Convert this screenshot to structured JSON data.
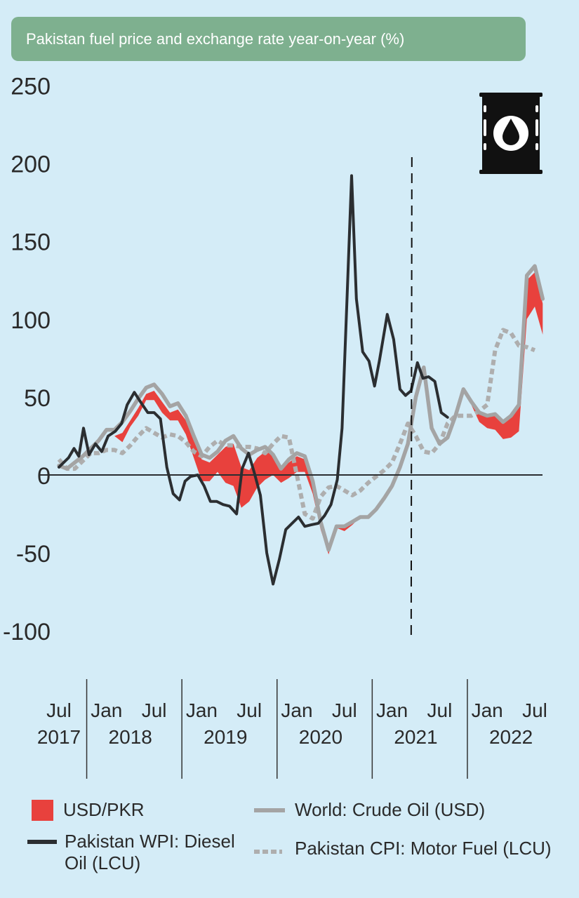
{
  "title": "Pakistan fuel price and exchange rate year-on-year (%)",
  "chart_data": {
    "type": "line",
    "title": "Pakistan fuel price and exchange rate year-on-year (%)",
    "xlabel": "",
    "ylabel": "",
    "ylim": [
      -100,
      250
    ],
    "yticks": [
      250,
      200,
      150,
      100,
      50,
      0,
      -50,
      -100
    ],
    "x_unit": "months since Jul 2017 (0 = Jul 2017, 60 = Jul 2022)",
    "x_groups": [
      {
        "labels": [
          {
            "text": "Jul",
            "x": 0
          }
        ],
        "year": "2017"
      },
      {
        "labels": [
          {
            "text": "Jan",
            "x": 6
          },
          {
            "text": "Jul",
            "x": 12
          }
        ],
        "year": "2018"
      },
      {
        "labels": [
          {
            "text": "Jan",
            "x": 18
          },
          {
            "text": "Jul",
            "x": 24
          }
        ],
        "year": "2019"
      },
      {
        "labels": [
          {
            "text": "Jan",
            "x": 30
          },
          {
            "text": "Jul",
            "x": 36
          }
        ],
        "year": "2020"
      },
      {
        "labels": [
          {
            "text": "Jan",
            "x": 42
          },
          {
            "text": "Jul",
            "x": 48
          }
        ],
        "year": "2021"
      },
      {
        "labels": [
          {
            "text": "Jan",
            "x": 54
          },
          {
            "text": "Jul",
            "x": 60
          }
        ],
        "year": "2022"
      }
    ],
    "group_dividers": [
      3.5,
      15.5,
      27.5,
      39.5,
      51.5
    ],
    "vline_x": 44.5,
    "series": [
      {
        "name": "World: Crude Oil (USD)",
        "color": "#a4a4a4",
        "points": [
          [
            0,
            6
          ],
          [
            1,
            4
          ],
          [
            2,
            8
          ],
          [
            3,
            12
          ],
          [
            4,
            17
          ],
          [
            5,
            22
          ],
          [
            6,
            29
          ],
          [
            7,
            29
          ],
          [
            8,
            34
          ],
          [
            9,
            41
          ],
          [
            10,
            49
          ],
          [
            11,
            56
          ],
          [
            12,
            58
          ],
          [
            13,
            52
          ],
          [
            14,
            44
          ],
          [
            15,
            46
          ],
          [
            16,
            38
          ],
          [
            17,
            25
          ],
          [
            18,
            13
          ],
          [
            19,
            11
          ],
          [
            20,
            15
          ],
          [
            21,
            22
          ],
          [
            22,
            25
          ],
          [
            23,
            17
          ],
          [
            24,
            13
          ],
          [
            25,
            16
          ],
          [
            26,
            18
          ],
          [
            27,
            13
          ],
          [
            28,
            4
          ],
          [
            29,
            10
          ],
          [
            30,
            14
          ],
          [
            31,
            12
          ],
          [
            32,
            -4
          ],
          [
            33,
            -30
          ],
          [
            34,
            -48
          ],
          [
            35,
            -33
          ],
          [
            36,
            -33
          ],
          [
            37,
            -30
          ],
          [
            38,
            -27
          ],
          [
            39,
            -27
          ],
          [
            40,
            -22
          ],
          [
            41,
            -15
          ],
          [
            42,
            -7
          ],
          [
            43,
            5
          ],
          [
            44,
            20
          ],
          [
            45,
            50
          ],
          [
            46,
            69
          ],
          [
            47,
            30
          ],
          [
            48,
            20
          ],
          [
            49,
            24
          ],
          [
            50,
            38
          ],
          [
            51,
            55
          ],
          [
            52,
            47
          ],
          [
            53,
            40
          ],
          [
            54,
            38
          ],
          [
            55,
            39
          ],
          [
            56,
            34
          ],
          [
            57,
            38
          ],
          [
            58,
            45
          ],
          [
            59,
            128
          ],
          [
            60,
            134
          ],
          [
            61,
            113
          ]
        ]
      },
      {
        "name": "Pakistan WPI: Diesel Oil (LCU)",
        "color": "#2b2e31",
        "points": [
          [
            0,
            5
          ],
          [
            0.6,
            8
          ],
          [
            1.2,
            11
          ],
          [
            1.9,
            17
          ],
          [
            2.5,
            12
          ],
          [
            3.1,
            30
          ],
          [
            3.8,
            13
          ],
          [
            4.6,
            20
          ],
          [
            5.4,
            15
          ],
          [
            6.2,
            25
          ],
          [
            7.1,
            28
          ],
          [
            7.9,
            33
          ],
          [
            8.6,
            45
          ],
          [
            9.5,
            53
          ],
          [
            10.4,
            46
          ],
          [
            11.2,
            40
          ],
          [
            12,
            40
          ],
          [
            12.8,
            36
          ],
          [
            13.6,
            5
          ],
          [
            14.4,
            -12
          ],
          [
            15.2,
            -16
          ],
          [
            15.9,
            -4
          ],
          [
            16.6,
            -1
          ],
          [
            17.5,
            0
          ],
          [
            18.3,
            -7
          ],
          [
            19.1,
            -17
          ],
          [
            19.9,
            -17
          ],
          [
            20.7,
            -19
          ],
          [
            21.5,
            -20
          ],
          [
            22.4,
            -25
          ],
          [
            23.1,
            4
          ],
          [
            23.9,
            14
          ],
          [
            24.6,
            2
          ],
          [
            25.4,
            -13
          ],
          [
            26.2,
            -50
          ],
          [
            27,
            -70
          ],
          [
            27.8,
            -54
          ],
          [
            28.6,
            -35
          ],
          [
            29.4,
            -31
          ],
          [
            30.2,
            -27
          ],
          [
            31,
            -33
          ],
          [
            31.8,
            -32
          ],
          [
            32.7,
            -31
          ],
          [
            33.5,
            -26
          ],
          [
            34.3,
            -19
          ],
          [
            35.1,
            -3
          ],
          [
            35.7,
            30
          ],
          [
            36.3,
            110
          ],
          [
            36.9,
            192
          ],
          [
            37.5,
            113
          ],
          [
            38.3,
            79
          ],
          [
            39.1,
            73
          ],
          [
            39.8,
            57
          ],
          [
            40.4,
            73
          ],
          [
            41.4,
            103
          ],
          [
            42.2,
            87
          ],
          [
            43,
            55
          ],
          [
            43.7,
            51
          ],
          [
            44.4,
            54
          ],
          [
            45.2,
            72
          ],
          [
            45.9,
            62
          ],
          [
            46.6,
            63
          ],
          [
            47.4,
            60
          ],
          [
            48.2,
            40
          ],
          [
            49,
            37
          ]
        ]
      },
      {
        "name": "Pakistan CPI: Motor Fuel (LCU)",
        "color": "#aeaeae",
        "dashed": true,
        "points": [
          [
            0,
            10
          ],
          [
            1,
            4
          ],
          [
            2,
            4
          ],
          [
            3,
            9
          ],
          [
            4,
            14
          ],
          [
            5,
            14
          ],
          [
            6,
            16
          ],
          [
            7,
            16
          ],
          [
            8,
            14
          ],
          [
            9,
            19
          ],
          [
            10,
            25
          ],
          [
            11,
            30
          ],
          [
            12,
            27
          ],
          [
            13,
            24
          ],
          [
            14,
            26
          ],
          [
            15,
            25
          ],
          [
            16,
            21
          ],
          [
            17,
            15
          ],
          [
            18,
            12
          ],
          [
            19,
            18
          ],
          [
            20,
            22
          ],
          [
            21,
            19
          ],
          [
            22,
            19
          ],
          [
            23,
            18
          ],
          [
            24,
            18
          ],
          [
            25,
            17
          ],
          [
            26,
            14
          ],
          [
            27,
            20
          ],
          [
            28,
            25
          ],
          [
            29,
            24
          ],
          [
            30,
            0
          ],
          [
            31,
            -25
          ],
          [
            32,
            -28
          ],
          [
            33,
            -14
          ],
          [
            34,
            -8
          ],
          [
            35,
            -7
          ],
          [
            36,
            -10
          ],
          [
            37,
            -13
          ],
          [
            38,
            -10
          ],
          [
            39,
            -5
          ],
          [
            40,
            -1
          ],
          [
            41,
            3
          ],
          [
            42,
            8
          ],
          [
            43,
            20
          ],
          [
            44,
            33
          ],
          [
            45,
            25
          ],
          [
            46,
            15
          ],
          [
            47,
            14
          ],
          [
            48,
            20
          ],
          [
            49,
            33
          ],
          [
            50,
            38
          ],
          [
            51,
            38
          ],
          [
            52,
            38
          ],
          [
            53,
            41
          ],
          [
            54,
            45
          ],
          [
            55,
            80
          ],
          [
            56,
            93
          ],
          [
            57,
            91
          ],
          [
            58,
            83
          ],
          [
            59,
            82
          ],
          [
            60,
            80
          ]
        ]
      }
    ],
    "band": {
      "name": "USD/PKR",
      "color": "#e8413d",
      "points": [
        [
          0,
          5,
          5
        ],
        [
          1,
          3,
          3
        ],
        [
          2,
          6,
          6
        ],
        [
          3,
          10,
          10
        ],
        [
          4,
          14,
          14
        ],
        [
          5,
          19,
          19
        ],
        [
          6,
          26,
          26
        ],
        [
          7,
          25,
          25
        ],
        [
          8,
          27,
          21
        ],
        [
          9,
          35,
          31
        ],
        [
          10,
          43,
          38
        ],
        [
          11,
          52,
          48
        ],
        [
          12,
          54,
          48
        ],
        [
          13,
          47,
          40
        ],
        [
          14,
          40,
          35
        ],
        [
          15,
          42,
          35
        ],
        [
          16,
          35,
          26
        ],
        [
          17,
          22,
          11
        ],
        [
          18,
          10,
          -4
        ],
        [
          19,
          8,
          -4
        ],
        [
          20,
          13,
          2
        ],
        [
          21,
          18,
          -5
        ],
        [
          22,
          20,
          -7
        ],
        [
          23,
          5,
          -21
        ],
        [
          24,
          3,
          -17
        ],
        [
          25,
          11,
          -8
        ],
        [
          26,
          15,
          -3
        ],
        [
          27,
          13,
          0
        ],
        [
          28,
          4,
          -5
        ],
        [
          29,
          8,
          -2
        ],
        [
          30,
          12,
          2
        ],
        [
          31,
          10,
          2
        ],
        [
          32,
          -6,
          -12
        ],
        [
          33,
          -31,
          -35
        ],
        [
          34,
          -47,
          -51
        ],
        [
          35,
          -32,
          -34
        ],
        [
          36,
          -33,
          -36
        ],
        [
          37,
          -31,
          -32
        ],
        [
          38,
          -27,
          -27
        ],
        [
          39,
          -28,
          -28
        ],
        [
          40,
          -23,
          -23
        ],
        [
          41,
          -16,
          -16
        ],
        [
          42,
          -8,
          -8
        ],
        [
          43,
          4,
          4
        ],
        [
          44,
          19,
          19
        ],
        [
          45,
          49,
          49
        ],
        [
          46,
          68,
          68
        ],
        [
          47,
          29,
          29
        ],
        [
          48,
          19,
          19
        ],
        [
          49,
          23,
          23
        ],
        [
          50,
          37,
          37
        ],
        [
          51,
          54,
          54
        ],
        [
          52,
          46,
          45
        ],
        [
          53,
          39,
          34
        ],
        [
          54,
          37,
          30
        ],
        [
          55,
          38,
          29
        ],
        [
          56,
          33,
          23
        ],
        [
          57,
          37,
          24
        ],
        [
          58,
          44,
          28
        ],
        [
          59,
          125,
          100
        ],
        [
          60,
          130,
          108
        ],
        [
          61,
          110,
          90
        ]
      ]
    },
    "legend": [
      {
        "label": "USD/PKR",
        "type": "swatch",
        "color": "#e8413d"
      },
      {
        "label": "World: Crude Oil (USD)",
        "type": "line",
        "color": "#a4a4a4"
      },
      {
        "label": "Pakistan WPI: Diesel Oil (LCU)",
        "type": "line",
        "color": "#2b2e31"
      },
      {
        "label": "Pakistan CPI: Motor Fuel (LCU)",
        "type": "dashed",
        "color": "#aeaeae"
      }
    ],
    "legend_lines": {
      "usd_pkr": [
        "USD/PKR"
      ],
      "crude": [
        "World: Crude Oil (USD)"
      ],
      "wpi": [
        "Pakistan WPI: Diesel",
        "Oil (LCU)"
      ],
      "cpi": [
        "Pakistan CPI: Motor Fuel (LCU)"
      ]
    },
    "icon": "oil-barrel-icon",
    "grid": false
  }
}
